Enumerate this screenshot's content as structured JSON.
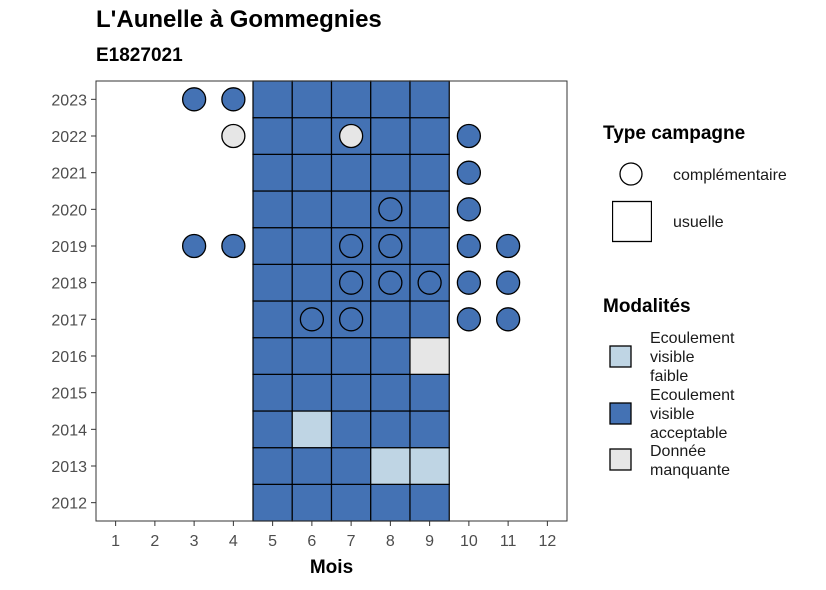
{
  "title": "L'Aunelle à Gommegnies",
  "subtitle": "E1827021",
  "chart_data": {
    "type": "heatmap",
    "xlabel": "Mois",
    "ylabel": "",
    "x_ticks": [
      1,
      2,
      3,
      4,
      5,
      6,
      7,
      8,
      9,
      10,
      11,
      12
    ],
    "y_ticks": [
      2012,
      2013,
      2014,
      2015,
      2016,
      2017,
      2018,
      2019,
      2020,
      2021,
      2022,
      2023
    ],
    "xlim": [
      0.5,
      12.5
    ],
    "ylim": [
      2011.5,
      2023.5
    ],
    "colors": {
      "Ecoulement visible faible": "#bfd5e4",
      "Ecoulement visible acceptable": "#4472b4",
      "Donnée manquante": "#e6e6e6"
    },
    "usuelle_cells": [
      {
        "year": 2012,
        "month": 5,
        "modalite": "Ecoulement visible acceptable"
      },
      {
        "year": 2012,
        "month": 6,
        "modalite": "Ecoulement visible acceptable"
      },
      {
        "year": 2012,
        "month": 7,
        "modalite": "Ecoulement visible acceptable"
      },
      {
        "year": 2012,
        "month": 8,
        "modalite": "Ecoulement visible acceptable"
      },
      {
        "year": 2012,
        "month": 9,
        "modalite": "Ecoulement visible acceptable"
      },
      {
        "year": 2013,
        "month": 5,
        "modalite": "Ecoulement visible acceptable"
      },
      {
        "year": 2013,
        "month": 6,
        "modalite": "Ecoulement visible acceptable"
      },
      {
        "year": 2013,
        "month": 7,
        "modalite": "Ecoulement visible acceptable"
      },
      {
        "year": 2013,
        "month": 8,
        "modalite": "Ecoulement visible faible"
      },
      {
        "year": 2013,
        "month": 9,
        "modalite": "Ecoulement visible faible"
      },
      {
        "year": 2014,
        "month": 5,
        "modalite": "Ecoulement visible acceptable"
      },
      {
        "year": 2014,
        "month": 6,
        "modalite": "Ecoulement visible faible"
      },
      {
        "year": 2014,
        "month": 7,
        "modalite": "Ecoulement visible acceptable"
      },
      {
        "year": 2014,
        "month": 8,
        "modalite": "Ecoulement visible acceptable"
      },
      {
        "year": 2014,
        "month": 9,
        "modalite": "Ecoulement visible acceptable"
      },
      {
        "year": 2015,
        "month": 5,
        "modalite": "Ecoulement visible acceptable"
      },
      {
        "year": 2015,
        "month": 6,
        "modalite": "Ecoulement visible acceptable"
      },
      {
        "year": 2015,
        "month": 7,
        "modalite": "Ecoulement visible acceptable"
      },
      {
        "year": 2015,
        "month": 8,
        "modalite": "Ecoulement visible acceptable"
      },
      {
        "year": 2015,
        "month": 9,
        "modalite": "Ecoulement visible acceptable"
      },
      {
        "year": 2016,
        "month": 5,
        "modalite": "Ecoulement visible acceptable"
      },
      {
        "year": 2016,
        "month": 6,
        "modalite": "Ecoulement visible acceptable"
      },
      {
        "year": 2016,
        "month": 7,
        "modalite": "Ecoulement visible acceptable"
      },
      {
        "year": 2016,
        "month": 8,
        "modalite": "Ecoulement visible acceptable"
      },
      {
        "year": 2016,
        "month": 9,
        "modalite": "Donnée manquante"
      },
      {
        "year": 2017,
        "month": 5,
        "modalite": "Ecoulement visible acceptable"
      },
      {
        "year": 2017,
        "month": 6,
        "modalite": "Ecoulement visible acceptable"
      },
      {
        "year": 2017,
        "month": 7,
        "modalite": "Ecoulement visible acceptable"
      },
      {
        "year": 2017,
        "month": 8,
        "modalite": "Ecoulement visible acceptable"
      },
      {
        "year": 2017,
        "month": 9,
        "modalite": "Ecoulement visible acceptable"
      },
      {
        "year": 2018,
        "month": 5,
        "modalite": "Ecoulement visible acceptable"
      },
      {
        "year": 2018,
        "month": 6,
        "modalite": "Ecoulement visible acceptable"
      },
      {
        "year": 2018,
        "month": 7,
        "modalite": "Ecoulement visible acceptable"
      },
      {
        "year": 2018,
        "month": 8,
        "modalite": "Ecoulement visible acceptable"
      },
      {
        "year": 2018,
        "month": 9,
        "modalite": "Ecoulement visible acceptable"
      },
      {
        "year": 2019,
        "month": 5,
        "modalite": "Ecoulement visible acceptable"
      },
      {
        "year": 2019,
        "month": 6,
        "modalite": "Ecoulement visible acceptable"
      },
      {
        "year": 2019,
        "month": 7,
        "modalite": "Ecoulement visible acceptable"
      },
      {
        "year": 2019,
        "month": 8,
        "modalite": "Ecoulement visible acceptable"
      },
      {
        "year": 2019,
        "month": 9,
        "modalite": "Ecoulement visible acceptable"
      },
      {
        "year": 2020,
        "month": 5,
        "modalite": "Ecoulement visible acceptable"
      },
      {
        "year": 2020,
        "month": 6,
        "modalite": "Ecoulement visible acceptable"
      },
      {
        "year": 2020,
        "month": 7,
        "modalite": "Ecoulement visible acceptable"
      },
      {
        "year": 2020,
        "month": 8,
        "modalite": "Ecoulement visible acceptable"
      },
      {
        "year": 2020,
        "month": 9,
        "modalite": "Ecoulement visible acceptable"
      },
      {
        "year": 2021,
        "month": 5,
        "modalite": "Ecoulement visible acceptable"
      },
      {
        "year": 2021,
        "month": 6,
        "modalite": "Ecoulement visible acceptable"
      },
      {
        "year": 2021,
        "month": 7,
        "modalite": "Ecoulement visible acceptable"
      },
      {
        "year": 2021,
        "month": 8,
        "modalite": "Ecoulement visible acceptable"
      },
      {
        "year": 2021,
        "month": 9,
        "modalite": "Ecoulement visible acceptable"
      },
      {
        "year": 2022,
        "month": 5,
        "modalite": "Ecoulement visible acceptable"
      },
      {
        "year": 2022,
        "month": 6,
        "modalite": "Ecoulement visible acceptable"
      },
      {
        "year": 2022,
        "month": 7,
        "modalite": "Ecoulement visible acceptable"
      },
      {
        "year": 2022,
        "month": 8,
        "modalite": "Ecoulement visible acceptable"
      },
      {
        "year": 2022,
        "month": 9,
        "modalite": "Ecoulement visible acceptable"
      },
      {
        "year": 2023,
        "month": 5,
        "modalite": "Ecoulement visible acceptable"
      },
      {
        "year": 2023,
        "month": 6,
        "modalite": "Ecoulement visible acceptable"
      },
      {
        "year": 2023,
        "month": 7,
        "modalite": "Ecoulement visible acceptable"
      },
      {
        "year": 2023,
        "month": 8,
        "modalite": "Ecoulement visible acceptable"
      },
      {
        "year": 2023,
        "month": 9,
        "modalite": "Ecoulement visible acceptable"
      }
    ],
    "complementaire_points": [
      {
        "year": 2023,
        "month": 3,
        "modalite": "Ecoulement visible acceptable"
      },
      {
        "year": 2023,
        "month": 4,
        "modalite": "Ecoulement visible acceptable"
      },
      {
        "year": 2022,
        "month": 4,
        "modalite": "Donnée manquante"
      },
      {
        "year": 2022,
        "month": 7,
        "modalite": "Donnée manquante"
      },
      {
        "year": 2022,
        "month": 10,
        "modalite": "Ecoulement visible acceptable"
      },
      {
        "year": 2021,
        "month": 10,
        "modalite": "Ecoulement visible acceptable"
      },
      {
        "year": 2020,
        "month": 8,
        "modalite": "Ecoulement visible acceptable"
      },
      {
        "year": 2020,
        "month": 10,
        "modalite": "Ecoulement visible acceptable"
      },
      {
        "year": 2019,
        "month": 3,
        "modalite": "Ecoulement visible acceptable"
      },
      {
        "year": 2019,
        "month": 4,
        "modalite": "Ecoulement visible acceptable"
      },
      {
        "year": 2019,
        "month": 7,
        "modalite": "Ecoulement visible acceptable"
      },
      {
        "year": 2019,
        "month": 8,
        "modalite": "Ecoulement visible acceptable"
      },
      {
        "year": 2019,
        "month": 10,
        "modalite": "Ecoulement visible acceptable"
      },
      {
        "year": 2019,
        "month": 11,
        "modalite": "Ecoulement visible acceptable"
      },
      {
        "year": 2018,
        "month": 7,
        "modalite": "Ecoulement visible acceptable"
      },
      {
        "year": 2018,
        "month": 8,
        "modalite": "Ecoulement visible acceptable"
      },
      {
        "year": 2018,
        "month": 9,
        "modalite": "Ecoulement visible acceptable"
      },
      {
        "year": 2018,
        "month": 10,
        "modalite": "Ecoulement visible acceptable"
      },
      {
        "year": 2018,
        "month": 11,
        "modalite": "Ecoulement visible acceptable"
      },
      {
        "year": 2017,
        "month": 6,
        "modalite": "Ecoulement visible acceptable"
      },
      {
        "year": 2017,
        "month": 7,
        "modalite": "Ecoulement visible acceptable"
      },
      {
        "year": 2017,
        "month": 10,
        "modalite": "Ecoulement visible acceptable"
      },
      {
        "year": 2017,
        "month": 11,
        "modalite": "Ecoulement visible acceptable"
      }
    ],
    "legend": {
      "type_title": "Type campagne",
      "type_items": [
        "complémentaire",
        "usuelle"
      ],
      "modalites_title": "Modalités",
      "modalites_items": [
        "Ecoulement visible faible",
        "Ecoulement visible acceptable",
        "Donnée manquante"
      ],
      "placement": "right"
    }
  }
}
